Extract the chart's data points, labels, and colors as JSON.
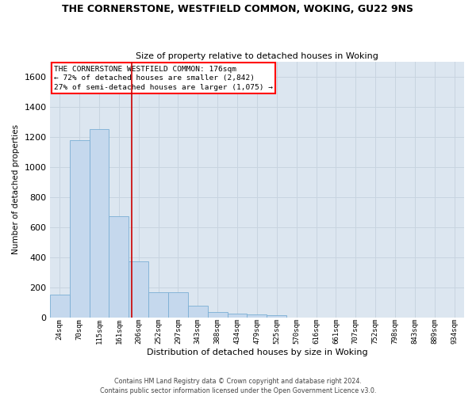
{
  "title": "THE CORNERSTONE, WESTFIELD COMMON, WOKING, GU22 9NS",
  "subtitle": "Size of property relative to detached houses in Woking",
  "xlabel": "Distribution of detached houses by size in Woking",
  "ylabel": "Number of detached properties",
  "categories": [
    "24sqm",
    "70sqm",
    "115sqm",
    "161sqm",
    "206sqm",
    "252sqm",
    "297sqm",
    "343sqm",
    "388sqm",
    "434sqm",
    "479sqm",
    "525sqm",
    "570sqm",
    "616sqm",
    "661sqm",
    "707sqm",
    "752sqm",
    "798sqm",
    "843sqm",
    "889sqm",
    "934sqm"
  ],
  "values": [
    150,
    1175,
    1250,
    670,
    375,
    165,
    165,
    80,
    35,
    25,
    20,
    15,
    0,
    0,
    0,
    0,
    0,
    0,
    0,
    0,
    0
  ],
  "bar_color": "#c5d8ed",
  "bar_edge_color": "#7aafd4",
  "grid_color": "#c8d4e0",
  "bg_color": "#ffffff",
  "plot_bg_color": "#dce6f0",
  "vline_color": "#cc0000",
  "vline_x": 3.65,
  "annotation_text_line1": "THE CORNERSTONE WESTFIELD COMMON: 176sqm",
  "annotation_text_line2": "← 72% of detached houses are smaller (2,842)",
  "annotation_text_line3": "27% of semi-detached houses are larger (1,075) →",
  "ylim": [
    0,
    1700
  ],
  "yticks": [
    0,
    200,
    400,
    600,
    800,
    1000,
    1200,
    1400,
    1600
  ],
  "footer_line1": "Contains HM Land Registry data © Crown copyright and database right 2024.",
  "footer_line2": "Contains public sector information licensed under the Open Government Licence v3.0."
}
